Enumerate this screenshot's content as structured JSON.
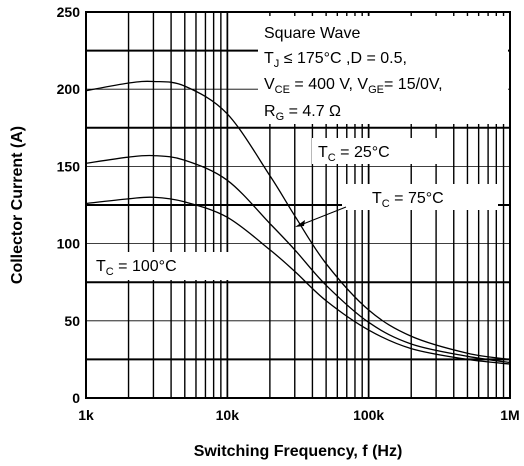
{
  "chart_data": {
    "type": "line",
    "x_scale": "log",
    "xlim": [
      1000,
      1000000
    ],
    "ylim": [
      0,
      250
    ],
    "grid": true,
    "xlabel": "Switching Frequency, f (Hz)",
    "ylabel": "Collector Current (A)",
    "x_tick_labels": [
      "1k",
      "10k",
      "100k",
      "1M"
    ],
    "y_tick_labels": [
      "0",
      "50",
      "100",
      "150",
      "200",
      "250"
    ],
    "conditions": {
      "line1": "Square Wave",
      "line2_pre": "T",
      "line2_sub": "J",
      "line2_post": " ≤ 175°C ,D = 0.5,",
      "line3_pre": "V",
      "line3_sub": "CE",
      "line3_mid": " = 400 V, V",
      "line3_sub2": "GE",
      "line3_post": "= 15/0V,",
      "line4_pre": "R",
      "line4_sub": "G",
      "line4_post": " = 4.7 Ω"
    },
    "series": [
      {
        "name": "TC = 25°C",
        "label_pre": "T",
        "label_sub": "C",
        "label_post": " = 25°C",
        "x": [
          1000,
          2000,
          3000,
          5000,
          10000,
          20000,
          30000,
          50000,
          100000,
          200000,
          500000,
          1000000
        ],
        "y": [
          199,
          204,
          205,
          202,
          184,
          144,
          118,
          87,
          57,
          40,
          29,
          25
        ]
      },
      {
        "name": "TC = 75°C",
        "label_pre": "T",
        "label_sub": "C",
        "label_post": " = 75°C",
        "x": [
          1000,
          2000,
          3000,
          5000,
          10000,
          20000,
          30000,
          50000,
          100000,
          200000,
          500000,
          1000000
        ],
        "y": [
          152,
          156,
          157,
          154,
          141,
          113,
          96,
          73,
          49,
          35,
          27,
          23
        ]
      },
      {
        "name": "TC = 100°C",
        "label_pre": "T",
        "label_sub": "C",
        "label_post": " = 100°C",
        "x": [
          1000,
          2000,
          3000,
          5000,
          10000,
          20000,
          30000,
          50000,
          100000,
          200000,
          500000,
          1000000
        ],
        "y": [
          126,
          129,
          130,
          127,
          117,
          96,
          82,
          63,
          44,
          32,
          25,
          22
        ]
      }
    ]
  }
}
